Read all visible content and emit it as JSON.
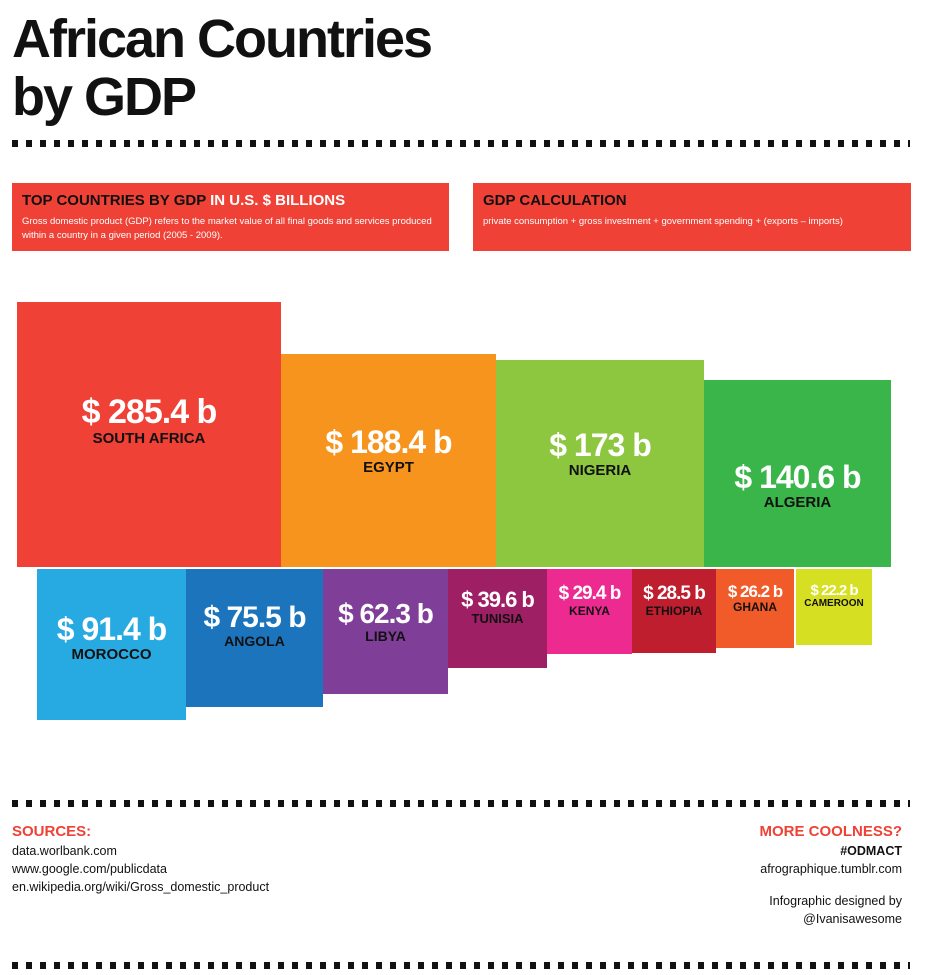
{
  "title": {
    "line1": "African Countries",
    "line2": "by GDP"
  },
  "info_left": {
    "heading_dark": "TOP COUNTRIES BY GDP",
    "heading_light": " IN U.S. $ BILLIONS",
    "text": "Gross domestic product (GDP) refers to the market value of all final goods and services produced within a country in a given period (2005 - 2009)."
  },
  "info_right": {
    "heading": "GDP CALCULATION",
    "text": "private consumption + gross investment + government spending + (exports – imports)"
  },
  "chart_data": {
    "type": "bar",
    "title": "African Countries by GDP",
    "unit": "U.S. $ billions",
    "categories": [
      "SOUTH AFRICA",
      "EGYPT",
      "NIGERIA",
      "ALGERIA",
      "MOROCCO",
      "ANGOLA",
      "LIBYA",
      "TUNISIA",
      "KENYA",
      "ETHIOPIA",
      "GHANA",
      "CAMEROON"
    ],
    "values": [
      285.4,
      188.4,
      173,
      140.6,
      91.4,
      75.5,
      62.3,
      39.6,
      29.4,
      28.5,
      26.2,
      22.2
    ],
    "labels": [
      "$ 285.4 b",
      "$ 188.4 b",
      "$ 173 b",
      "$ 140.6 b",
      "$ 91.4 b",
      "$ 75.5 b",
      "$ 62.3 b",
      "$ 39.6 b",
      "$ 29.4 b",
      "$ 28.5 b",
      "$ 26.2 b",
      "$ 22.2 b"
    ],
    "colors": [
      "#ef4136",
      "#f7941d",
      "#8dc63f",
      "#39b54a",
      "#27aae1",
      "#1c75bc",
      "#7f3f98",
      "#9e1f63",
      "#ec2a8f",
      "#be1e2d",
      "#f15a29",
      "#d7df23"
    ]
  },
  "sources": {
    "heading": "SOURCES:",
    "items": [
      "data.worlbank.com",
      "www.google.com/publicdata",
      "en.wikipedia.org/wiki/Gross_domestic_product"
    ]
  },
  "more": {
    "heading": "MORE COOLNESS?",
    "tag": "#ODMACT",
    "site": "afrographique.tumblr.com",
    "credit1": "Infographic designed by",
    "credit2": "@Ivanisawesome"
  }
}
